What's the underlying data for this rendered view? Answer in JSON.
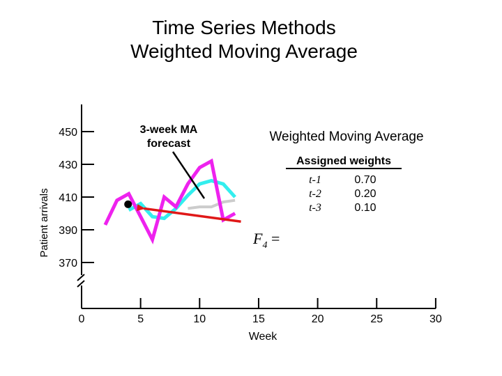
{
  "slide": {
    "title_line1": "Time Series Methods",
    "title_line2": "Weighted Moving Average"
  },
  "annotation": {
    "ma_label_line1": "3-week MA",
    "ma_label_line2": "forecast",
    "wma_heading": "Weighted Moving Average",
    "weights_heading": "Assigned weights",
    "weights": [
      {
        "period": "t-1",
        "weight": "0.70"
      },
      {
        "period": "t-2",
        "weight": "0.20"
      },
      {
        "period": "t-3",
        "weight": "0.10"
      }
    ],
    "formula": "F4 ="
  },
  "colors": {
    "actual": "#ee22ee",
    "ma3": "#33eeee",
    "wma": "#cccccc",
    "forecast_arrow": "#e01818"
  },
  "chart_data": {
    "type": "line",
    "title": "",
    "xlabel": "Week",
    "ylabel": "Patient arrivals",
    "xlim": [
      0,
      30
    ],
    "ylim": [
      360,
      460
    ],
    "y_axis_break": true,
    "x_ticks": [
      0,
      5,
      10,
      15,
      20,
      25,
      30
    ],
    "y_ticks": [
      370,
      390,
      410,
      430,
      450
    ],
    "series": [
      {
        "key": "actual",
        "x": [
          2,
          3,
          4,
          5,
          6,
          7,
          8,
          9,
          10,
          11,
          12,
          13
        ],
        "y": [
          393,
          408,
          412,
          398,
          384,
          410,
          404,
          418,
          428,
          432,
          396,
          400
        ]
      },
      {
        "key": "ma3",
        "x": [
          4,
          5,
          6,
          7,
          8,
          9,
          10,
          11,
          12,
          13
        ],
        "y": [
          402,
          406,
          398,
          397,
          403,
          411,
          418,
          420,
          418,
          410
        ]
      },
      {
        "key": "wma",
        "x": [
          9,
          10,
          11,
          12,
          13
        ],
        "y": [
          403,
          404,
          404,
          407,
          408
        ]
      }
    ],
    "highlight_point": {
      "x": 4,
      "y": 406
    },
    "forecast_arrow": {
      "x_from": 13.5,
      "y_from": 395,
      "x_to": 4.7,
      "y_to": 403
    }
  }
}
